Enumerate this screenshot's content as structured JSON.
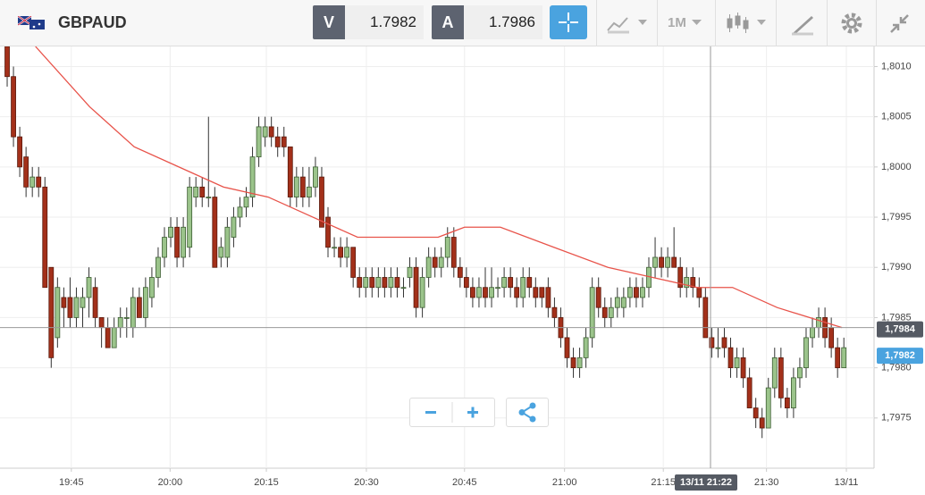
{
  "toolbar": {
    "symbol": "GBPAUD",
    "bid_label": "V",
    "bid": 1.7982,
    "ask_label": "A",
    "ask": 1.7986,
    "timeframe": "1M"
  },
  "chart_data": {
    "type": "candlestick",
    "xlim": [
      -1.14,
      137.8
    ],
    "ylim": [
      1.797,
      1.8012
    ],
    "grid": true,
    "bull_color": "#9bc48b",
    "bear_color": "#a3301a",
    "xticks": [
      {
        "value": 10.2,
        "label": "19:45"
      },
      {
        "value": 25.9,
        "label": "20:00"
      },
      {
        "value": 41.2,
        "label": "20:15"
      },
      {
        "value": 57.1,
        "label": "20:30"
      },
      {
        "value": 72.7,
        "label": "20:45"
      },
      {
        "value": 88.6,
        "label": "21:00"
      },
      {
        "value": 104.3,
        "label": "21:15"
      },
      {
        "value": 120.7,
        "label": "21:30"
      },
      {
        "value": 133.4,
        "label": "13/11"
      }
    ],
    "yticks": [
      {
        "value": 1.7975,
        "label": "1,7975"
      },
      {
        "value": 1.798,
        "label": "1,7980"
      },
      {
        "value": 1.7985,
        "label": "1,7985"
      },
      {
        "value": 1.799,
        "label": "1,7990"
      },
      {
        "value": 1.7995,
        "label": "1,7995"
      },
      {
        "value": 1.8,
        "label": "1,8000"
      },
      {
        "value": 1.8005,
        "label": "1,8005"
      },
      {
        "value": 1.801,
        "label": "1,8010"
      }
    ],
    "price_labels": [
      {
        "value": 1.7984,
        "label": "1,7984",
        "color": "#555a63"
      },
      {
        "value": 1.7982,
        "label": "1,7982",
        "color": "#4aa3df"
      }
    ],
    "crosshair_label": "13/11 21:22",
    "ma": {
      "color": "#e8534a",
      "x": [
        4.5,
        13.1,
        20.2,
        27.3,
        34.4,
        41.5,
        48.6,
        55.7,
        59.9,
        68.5,
        72.7,
        78.4,
        86.9,
        95.5,
        102.6,
        109.7,
        115.3,
        122.4,
        132.7
      ],
      "values": [
        1.8012,
        1.8006,
        1.8002,
        1.8,
        1.7998,
        1.7997,
        1.7995,
        1.7993,
        1.7993,
        1.7993,
        1.7994,
        1.7994,
        1.7992,
        1.799,
        1.7989,
        1.7988,
        1.7988,
        1.7986,
        1.7984
      ]
    },
    "candles": [
      [
        1.8012,
        1.8013,
        1.8008,
        1.8009
      ],
      [
        1.8009,
        1.801,
        1.8002,
        1.8003
      ],
      [
        1.8003,
        1.8004,
        1.7999,
        1.8
      ],
      [
        1.8001,
        1.8002,
        1.7997,
        1.7998
      ],
      [
        1.7998,
        1.8,
        1.7997,
        1.7999
      ],
      [
        1.7999,
        1.8,
        1.7997,
        1.7998
      ],
      [
        1.7998,
        1.7999,
        1.7988,
        1.7988
      ],
      [
        1.799,
        1.799,
        1.798,
        1.7981
      ],
      [
        1.7983,
        1.7989,
        1.7982,
        1.7988
      ],
      [
        1.7987,
        1.7988,
        1.7984,
        1.7986
      ],
      [
        1.7987,
        1.7989,
        1.7984,
        1.7985
      ],
      [
        1.7985,
        1.7988,
        1.7984,
        1.7987
      ],
      [
        1.7986,
        1.7988,
        1.7984,
        1.7987
      ],
      [
        1.7987,
        1.799,
        1.7985,
        1.7989
      ],
      [
        1.7988,
        1.7989,
        1.7984,
        1.7985
      ],
      [
        1.7985,
        1.7985,
        1.7982,
        1.7984
      ],
      [
        1.7984,
        1.7985,
        1.7982,
        1.7982
      ],
      [
        1.7982,
        1.7985,
        1.7982,
        1.7984
      ],
      [
        1.7984,
        1.7986,
        1.7983,
        1.7985
      ],
      [
        1.7985,
        1.7986,
        1.7983,
        1.7985
      ],
      [
        1.7984,
        1.7988,
        1.7983,
        1.7987
      ],
      [
        1.7987,
        1.7988,
        1.7985,
        1.7985
      ],
      [
        1.7985,
        1.7989,
        1.7984,
        1.7988
      ],
      [
        1.7987,
        1.799,
        1.7986,
        1.7989
      ],
      [
        1.7989,
        1.7992,
        1.7988,
        1.7991
      ],
      [
        1.7991,
        1.7994,
        1.799,
        1.7993
      ],
      [
        1.7993,
        1.7995,
        1.7992,
        1.7994
      ],
      [
        1.7994,
        1.7995,
        1.799,
        1.7991
      ],
      [
        1.7991,
        1.7995,
        1.799,
        1.7994
      ],
      [
        1.7992,
        1.7999,
        1.7991,
        1.7998
      ],
      [
        1.7997,
        1.7999,
        1.7996,
        1.7998
      ],
      [
        1.7998,
        1.7999,
        1.7996,
        1.7997
      ],
      [
        1.7997,
        1.8005,
        1.7996,
        1.7997
      ],
      [
        1.7997,
        1.7998,
        1.799,
        1.799
      ],
      [
        1.7991,
        1.7993,
        1.799,
        1.7992
      ],
      [
        1.7991,
        1.7995,
        1.799,
        1.7994
      ],
      [
        1.7993,
        1.7996,
        1.7992,
        1.7995
      ],
      [
        1.7995,
        1.7997,
        1.7994,
        1.7996
      ],
      [
        1.7996,
        1.7998,
        1.7995,
        1.7997
      ],
      [
        1.7997,
        1.8002,
        1.7996,
        1.8001
      ],
      [
        1.8001,
        1.8005,
        1.8,
        1.8004
      ],
      [
        1.8003,
        1.8005,
        1.8002,
        1.8004
      ],
      [
        1.8004,
        1.8005,
        1.8002,
        1.8003
      ],
      [
        1.8003,
        1.8004,
        1.8001,
        1.8002
      ],
      [
        1.8003,
        1.8004,
        1.8001,
        1.8002
      ],
      [
        1.8002,
        1.8002,
        1.7996,
        1.7997
      ],
      [
        1.7997,
        1.8,
        1.7996,
        1.7999
      ],
      [
        1.7999,
        1.8,
        1.7996,
        1.7997
      ],
      [
        1.7997,
        1.8,
        1.7996,
        1.7998
      ],
      [
        1.7998,
        1.8001,
        1.7997,
        1.8
      ],
      [
        1.7999,
        1.8,
        1.7994,
        1.7994
      ],
      [
        1.7995,
        1.7996,
        1.7991,
        1.7992
      ],
      [
        1.7992,
        1.7993,
        1.7991,
        1.7992
      ],
      [
        1.7992,
        1.7993,
        1.799,
        1.7991
      ],
      [
        1.7991,
        1.7993,
        1.799,
        1.7992
      ],
      [
        1.7992,
        1.7992,
        1.7988,
        1.7989
      ],
      [
        1.7989,
        1.799,
        1.7987,
        1.7988
      ],
      [
        1.7988,
        1.799,
        1.7987,
        1.7989
      ],
      [
        1.7989,
        1.799,
        1.7987,
        1.7988
      ],
      [
        1.7988,
        1.799,
        1.7987,
        1.7989
      ],
      [
        1.7989,
        1.799,
        1.7987,
        1.7988
      ],
      [
        1.7988,
        1.799,
        1.7987,
        1.7989
      ],
      [
        1.7989,
        1.799,
        1.7987,
        1.7988
      ],
      [
        1.7988,
        1.7989,
        1.7987,
        1.7988
      ],
      [
        1.7989,
        1.7991,
        1.7988,
        1.799
      ],
      [
        1.799,
        1.7991,
        1.7985,
        1.7986
      ],
      [
        1.7986,
        1.799,
        1.7985,
        1.7989
      ],
      [
        1.7989,
        1.7992,
        1.7988,
        1.7991
      ],
      [
        1.7991,
        1.7992,
        1.7989,
        1.799
      ],
      [
        1.799,
        1.7992,
        1.7989,
        1.7991
      ],
      [
        1.7991,
        1.7994,
        1.799,
        1.7993
      ],
      [
        1.7993,
        1.7994,
        1.7989,
        1.799
      ],
      [
        1.799,
        1.7991,
        1.7988,
        1.7989
      ],
      [
        1.7989,
        1.799,
        1.7987,
        1.7988
      ],
      [
        1.7988,
        1.7989,
        1.7986,
        1.7987
      ],
      [
        1.7987,
        1.7989,
        1.7986,
        1.7988
      ],
      [
        1.7988,
        1.799,
        1.7986,
        1.7987
      ],
      [
        1.7987,
        1.799,
        1.7986,
        1.7988
      ],
      [
        1.7988,
        1.7989,
        1.7987,
        1.7988
      ],
      [
        1.7988,
        1.799,
        1.7987,
        1.7989
      ],
      [
        1.7989,
        1.799,
        1.7987,
        1.7988
      ],
      [
        1.7988,
        1.7989,
        1.7986,
        1.7987
      ],
      [
        1.7987,
        1.799,
        1.7986,
        1.7989
      ],
      [
        1.7989,
        1.799,
        1.7987,
        1.7988
      ],
      [
        1.7988,
        1.7989,
        1.7986,
        1.7987
      ],
      [
        1.7988,
        1.7988,
        1.7986,
        1.7987
      ],
      [
        1.7988,
        1.7989,
        1.7985,
        1.7986
      ],
      [
        1.7986,
        1.7987,
        1.7984,
        1.7985
      ],
      [
        1.7985,
        1.7986,
        1.7982,
        1.7983
      ],
      [
        1.7983,
        1.7984,
        1.798,
        1.7981
      ],
      [
        1.7981,
        1.7982,
        1.7979,
        1.798
      ],
      [
        1.798,
        1.7982,
        1.7979,
        1.7981
      ],
      [
        1.7981,
        1.7984,
        1.798,
        1.7983
      ],
      [
        1.7983,
        1.7989,
        1.7982,
        1.7988
      ],
      [
        1.7988,
        1.7989,
        1.7985,
        1.7986
      ],
      [
        1.7986,
        1.7987,
        1.7984,
        1.7985
      ],
      [
        1.7985,
        1.7987,
        1.7984,
        1.7986
      ],
      [
        1.7986,
        1.7988,
        1.7985,
        1.7987
      ],
      [
        1.7986,
        1.7988,
        1.7985,
        1.7987
      ],
      [
        1.7987,
        1.7989,
        1.7986,
        1.7988
      ],
      [
        1.7988,
        1.7989,
        1.7986,
        1.7987
      ],
      [
        1.7987,
        1.7989,
        1.7986,
        1.7988
      ],
      [
        1.7988,
        1.7991,
        1.7987,
        1.799
      ],
      [
        1.799,
        1.7993,
        1.7989,
        1.7991
      ],
      [
        1.7991,
        1.7992,
        1.7989,
        1.799
      ],
      [
        1.799,
        1.7992,
        1.7989,
        1.7991
      ],
      [
        1.7991,
        1.7994,
        1.799,
        1.799
      ],
      [
        1.799,
        1.7991,
        1.7987,
        1.7988
      ],
      [
        1.7988,
        1.799,
        1.7987,
        1.7989
      ],
      [
        1.7989,
        1.799,
        1.7987,
        1.7988
      ],
      [
        1.7988,
        1.7989,
        1.7986,
        1.7987
      ],
      [
        1.7987,
        1.7988,
        1.7983,
        1.7983
      ],
      [
        1.7983,
        1.7984,
        1.7981,
        1.7982
      ],
      [
        1.7982,
        1.7984,
        1.7981,
        1.7982
      ],
      [
        1.7983,
        1.7984,
        1.7981,
        1.7982
      ],
      [
        1.7982,
        1.7983,
        1.7979,
        1.798
      ],
      [
        1.798,
        1.7982,
        1.7979,
        1.7981
      ],
      [
        1.7981,
        1.7982,
        1.7978,
        1.7979
      ],
      [
        1.7979,
        1.798,
        1.7976,
        1.7976
      ],
      [
        1.7976,
        1.7977,
        1.7974,
        1.7975
      ],
      [
        1.7975,
        1.7976,
        1.7973,
        1.7974
      ],
      [
        1.7974,
        1.7979,
        1.7974,
        1.7978
      ],
      [
        1.7978,
        1.7982,
        1.7977,
        1.7981
      ],
      [
        1.7981,
        1.7982,
        1.7976,
        1.7977
      ],
      [
        1.7977,
        1.7978,
        1.7975,
        1.7976
      ],
      [
        1.7976,
        1.798,
        1.7975,
        1.7979
      ],
      [
        1.7979,
        1.7981,
        1.7978,
        1.798
      ],
      [
        1.798,
        1.7984,
        1.7979,
        1.7983
      ],
      [
        1.7983,
        1.7985,
        1.7982,
        1.7984
      ],
      [
        1.7984,
        1.7986,
        1.7983,
        1.7985
      ],
      [
        1.7985,
        1.7986,
        1.7982,
        1.7983
      ],
      [
        1.7984,
        1.7985,
        1.7981,
        1.7982
      ],
      [
        1.7982,
        1.7983,
        1.7979,
        1.798
      ],
      [
        1.798,
        1.7983,
        1.798,
        1.7982
      ]
    ]
  }
}
